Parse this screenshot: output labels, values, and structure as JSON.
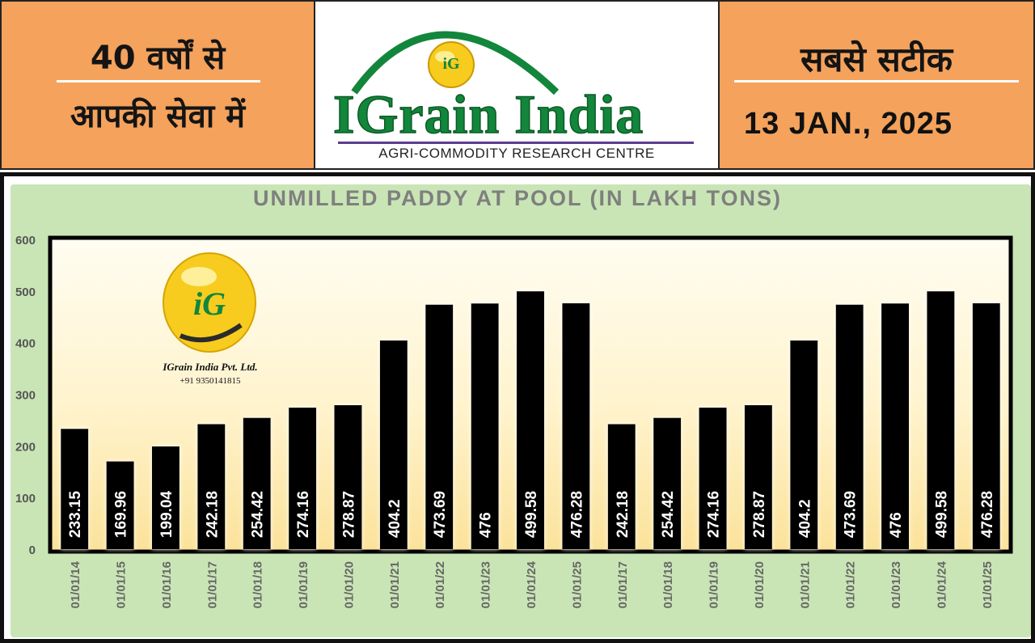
{
  "header": {
    "left_line1": "40 वर्षों से",
    "left_line2": "आपकी सेवा में",
    "brand_name": "IGrain India",
    "brand_tagline": "AGRI-COMMODITY RESEARCH CENTRE",
    "logo_letters": "iG",
    "right_line1": "सबसे सटीक",
    "date": "13 JAN., 2025"
  },
  "watermark": {
    "logo_letters": "iG",
    "company": "IGrain India Pvt. Ltd.",
    "phone": "+91 9350141815"
  },
  "colors": {
    "header_orange": "#f4a25c",
    "chart_green": "#c9e5b5",
    "brand_green": "#12863b",
    "bar_fill": "#000000",
    "logo_yellow": "#f7cc1f"
  },
  "chart_data": {
    "type": "bar",
    "title": "UNMILLED PADDY AT POOL (IN LAKH TONS)",
    "xlabel": "",
    "ylabel": "",
    "ylim": [
      0,
      600
    ],
    "yticks": [
      0,
      100,
      200,
      300,
      400,
      500,
      600
    ],
    "grid": false,
    "legend": "none",
    "categories": [
      "01/01/14",
      "01/01/15",
      "01/01/16",
      "01/01/17",
      "01/01/18",
      "01/01/19",
      "01/01/20",
      "01/01/21",
      "01/01/22",
      "01/01/23",
      "01/01/24",
      "01/01/25",
      "01/01/17",
      "01/01/18",
      "01/01/19",
      "01/01/20",
      "01/01/21",
      "01/01/22",
      "01/01/23",
      "01/01/24",
      "01/01/25"
    ],
    "values": [
      233.15,
      169.96,
      199.04,
      242.18,
      254.42,
      274.16,
      278.87,
      404.2,
      473.69,
      476,
      499.58,
      476.28,
      242.18,
      254.42,
      274.16,
      278.87,
      404.2,
      473.69,
      476,
      499.58,
      476.28
    ],
    "value_labels": [
      "233.15",
      "169.96",
      "199.04",
      "242.18",
      "254.42",
      "274.16",
      "278.87",
      "404.2",
      "473.69",
      "476",
      "499.58",
      "476.28",
      "242.18",
      "254.42",
      "274.16",
      "278.87",
      "404.2",
      "473.69",
      "476",
      "499.58",
      "476.28"
    ]
  }
}
